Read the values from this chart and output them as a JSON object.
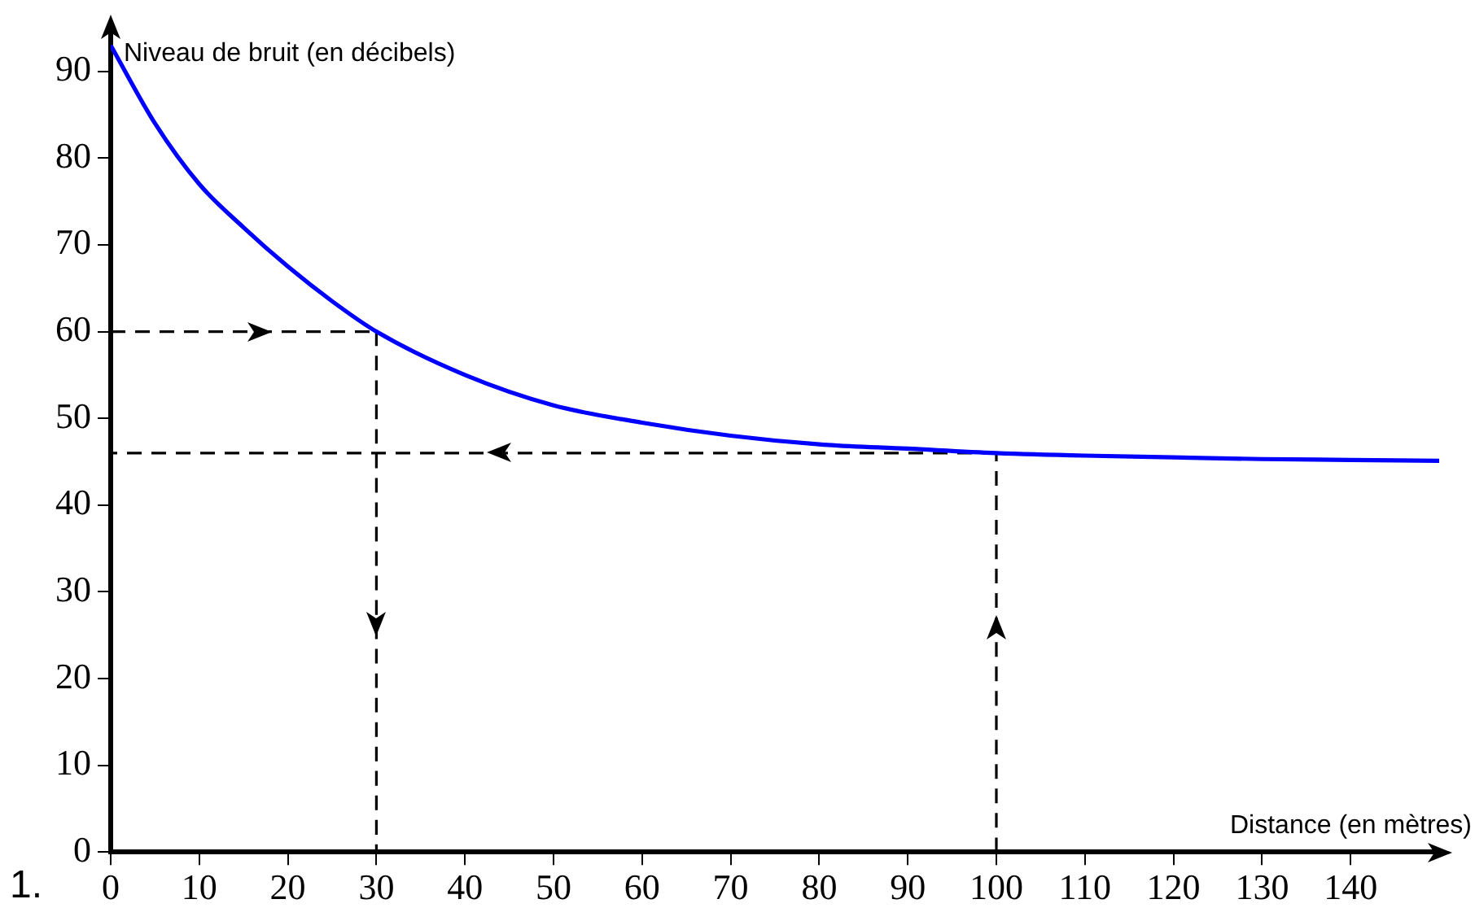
{
  "chart_data": {
    "type": "line",
    "xlabel": "Distance (en mètres)",
    "ylabel": "Niveau de bruit (en décibels)",
    "annotations": [
      "1."
    ],
    "xlim": [
      0,
      150
    ],
    "xticks": [
      0,
      10,
      20,
      30,
      40,
      50,
      60,
      70,
      80,
      90,
      100,
      110,
      120,
      130,
      140
    ],
    "ylim": [
      0,
      95
    ],
    "yticks": [
      0,
      10,
      20,
      30,
      40,
      50,
      60,
      70,
      80,
      90
    ],
    "grid": false,
    "legend": false,
    "marker": "none",
    "series": [
      {
        "color": "#0000ff",
        "line_style": "solid",
        "x": [
          0,
          5,
          10,
          15,
          20,
          25,
          30,
          40,
          50,
          60,
          70,
          80,
          90,
          100,
          110,
          120,
          130,
          140,
          150
        ],
        "values": [
          93,
          84,
          77,
          72,
          67.5,
          63.5,
          60,
          55,
          51.5,
          49.5,
          48,
          47,
          46.5,
          46,
          45.7,
          45.5,
          45.3,
          45.2,
          45.1
        ]
      },
      {
        "color": "#000000",
        "line_style": "dashed",
        "x": [
          0,
          30
        ],
        "values": [
          60,
          60
        ]
      },
      {
        "color": "#000000",
        "line_style": "dashed",
        "x": [
          30,
          30
        ],
        "values": [
          60,
          0
        ]
      },
      {
        "color": "#000000",
        "line_style": "dashed",
        "x": [
          100,
          0
        ],
        "values": [
          46,
          46
        ]
      },
      {
        "color": "#000000",
        "line_style": "dashed",
        "x": [
          100,
          100
        ],
        "values": [
          0,
          46
        ]
      }
    ]
  }
}
